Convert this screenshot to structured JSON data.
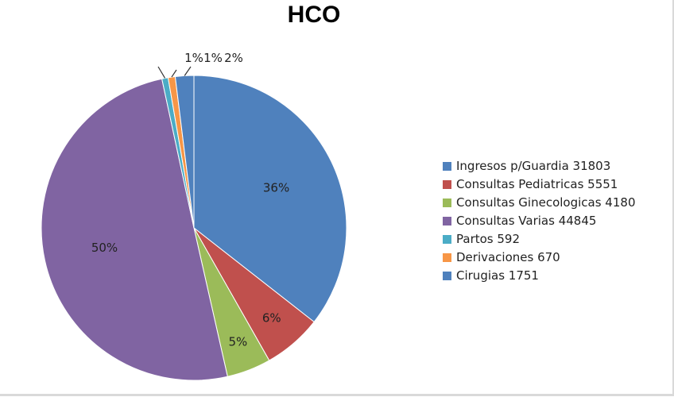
{
  "chart_data": {
    "type": "pie",
    "title": "HCO",
    "series": [
      {
        "label": "Ingresos p/Guardia  31803",
        "value": 31803,
        "pct_label": "36%",
        "color": "#4f81bd"
      },
      {
        "label": "Consultas Pediatricas  5551",
        "value": 5551,
        "pct_label": "6%",
        "color": "#c0504d"
      },
      {
        "label": "Consultas Ginecologicas  4180",
        "value": 4180,
        "pct_label": "5%",
        "color": "#9bbb59"
      },
      {
        "label": "Consultas Varias  44845",
        "value": 44845,
        "pct_label": "50%",
        "color": "#8064a2"
      },
      {
        "label": "Partos  592",
        "value": 592,
        "pct_label": "1%",
        "color": "#4bacc6"
      },
      {
        "label": "Derivaciones 670",
        "value": 670,
        "pct_label": "1%",
        "color": "#f79646"
      },
      {
        "label": "Cirugias 1751",
        "value": 1751,
        "pct_label": "2%",
        "color": "#4f81bd"
      }
    ],
    "legend_position": "right"
  }
}
